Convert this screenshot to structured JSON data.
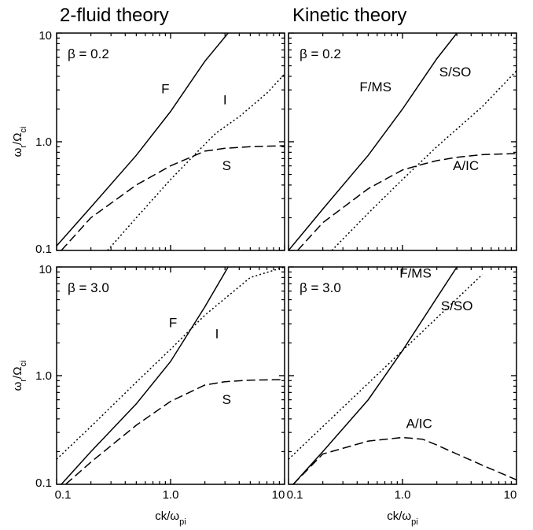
{
  "figure": {
    "column_titles": [
      "2-fluid theory",
      "Kinetic theory"
    ],
    "ylabel": "ωr/Ωci",
    "xlabel": "ck/ωpi"
  },
  "chart_data": [
    {
      "type": "line",
      "title": "2-fluid theory",
      "annotation": "β = 0.2",
      "xlabel": "ck/ωpi",
      "ylabel": "ωr/Ωci",
      "xscale": "log",
      "yscale": "log",
      "xlim": [
        0.1,
        10
      ],
      "ylim": [
        0.1,
        10
      ],
      "xticks": [
        "0.1",
        "1.0",
        "10"
      ],
      "yticks": [
        "0.1",
        "1.0",
        "10"
      ],
      "show_xticks": false,
      "series": [
        {
          "name": "F",
          "style": "solid",
          "x": [
            0.1,
            0.2,
            0.5,
            1.0,
            2.0,
            3.2
          ],
          "y": [
            0.11,
            0.25,
            0.75,
            1.9,
            5.5,
            10.0
          ],
          "label_at": [
            0.9,
            2.8
          ]
        },
        {
          "name": "I",
          "style": "dotted",
          "x": [
            0.28,
            0.5,
            1.0,
            2.0,
            2.5,
            4.0,
            7.0,
            10.0
          ],
          "y": [
            0.1,
            0.2,
            0.45,
            0.95,
            1.2,
            1.7,
            2.8,
            4.2
          ],
          "label_at": [
            3.0,
            2.2
          ]
        },
        {
          "name": "S",
          "style": "dashed",
          "x": [
            0.11,
            0.2,
            0.5,
            1.0,
            2.0,
            3.0,
            5.0,
            10.0
          ],
          "y": [
            0.1,
            0.2,
            0.4,
            0.6,
            0.82,
            0.87,
            0.9,
            0.92
          ],
          "label_at": [
            3.1,
            0.55
          ]
        }
      ]
    },
    {
      "type": "line",
      "title": "Kinetic theory",
      "annotation": "β = 0.2",
      "xlabel": "ck/ωpi",
      "ylabel": "ωr/Ωci",
      "xscale": "log",
      "yscale": "log",
      "xlim": [
        0.1,
        10
      ],
      "ylim": [
        0.1,
        10
      ],
      "xticks": [
        "0.1",
        "1.0",
        "10"
      ],
      "yticks": [
        "0.1",
        "1.0",
        "10"
      ],
      "show_xticks": false,
      "series": [
        {
          "name": "F/MS",
          "style": "solid",
          "x": [
            0.1,
            0.2,
            0.5,
            1.0,
            2.0,
            3.0
          ],
          "y": [
            0.1,
            0.24,
            0.75,
            2.0,
            5.8,
            10.0
          ],
          "label_at": [
            0.58,
            2.9
          ]
        },
        {
          "name": "S/SO",
          "style": "dotted",
          "x": [
            0.24,
            0.5,
            1.0,
            2.0,
            5.0,
            10.0
          ],
          "y": [
            0.1,
            0.22,
            0.45,
            0.9,
            2.1,
            4.5
          ],
          "label_at": [
            2.9,
            4.0
          ]
        },
        {
          "name": "A/IC",
          "style": "dashed",
          "x": [
            0.12,
            0.2,
            0.5,
            1.0,
            1.5,
            2.0,
            3.0,
            5.0,
            10.0
          ],
          "y": [
            0.1,
            0.18,
            0.37,
            0.55,
            0.62,
            0.67,
            0.72,
            0.76,
            0.78
          ],
          "label_at": [
            3.6,
            0.55
          ]
        }
      ]
    },
    {
      "type": "line",
      "annotation": "β = 3.0",
      "xlabel": "ck/ωpi",
      "ylabel": "ωr/Ωci",
      "xscale": "log",
      "yscale": "log",
      "xlim": [
        0.1,
        10
      ],
      "ylim": [
        0.1,
        10
      ],
      "xticks": [
        "0.1",
        "1.0",
        "10"
      ],
      "yticks": [
        "0.1",
        "1.0",
        "10"
      ],
      "show_xticks": true,
      "series": [
        {
          "name": "F",
          "style": "solid",
          "x": [
            0.11,
            0.2,
            0.5,
            1.0,
            2.0,
            3.2
          ],
          "y": [
            0.1,
            0.2,
            0.55,
            1.35,
            4.3,
            10.0
          ],
          "label_at": [
            1.05,
            2.8
          ]
        },
        {
          "name": "I",
          "style": "dotted",
          "x": [
            0.1,
            0.2,
            0.5,
            1.0,
            2.0,
            5.0,
            10.0
          ],
          "y": [
            0.17,
            0.34,
            0.87,
            1.75,
            3.6,
            8.0,
            10.0
          ],
          "label_at": [
            2.55,
            2.2
          ]
        },
        {
          "name": "S",
          "style": "dashed",
          "x": [
            0.12,
            0.2,
            0.5,
            1.0,
            2.0,
            3.0,
            5.0,
            10.0
          ],
          "y": [
            0.1,
            0.16,
            0.35,
            0.58,
            0.82,
            0.88,
            0.91,
            0.92
          ],
          "label_at": [
            3.1,
            0.55
          ]
        }
      ]
    },
    {
      "type": "line",
      "annotation": "β = 3.0",
      "xlabel": "ck/ωpi",
      "ylabel": "ωr/Ωci",
      "xscale": "log",
      "yscale": "log",
      "xlim": [
        0.1,
        10
      ],
      "ylim": [
        0.1,
        10
      ],
      "xticks": [
        "0.1",
        "1.0",
        "10"
      ],
      "yticks": [
        "0.1",
        "1.0",
        "10"
      ],
      "show_xticks": true,
      "series": [
        {
          "name": "F/MS",
          "style": "solid",
          "x": [
            0.11,
            0.2,
            0.5,
            1.0,
            2.0,
            3.0
          ],
          "y": [
            0.1,
            0.2,
            0.6,
            1.7,
            5.2,
            10.0
          ],
          "label_at": [
            1.3,
            8.0
          ]
        },
        {
          "name": "S/SO",
          "style": "dotted",
          "x": [
            0.1,
            0.2,
            0.5,
            1.0,
            2.0,
            5.0
          ],
          "y": [
            0.17,
            0.34,
            0.85,
            1.7,
            3.4,
            8.5
          ],
          "label_at": [
            3.0,
            4.0
          ]
        },
        {
          "name": "A/IC",
          "style": "dashed",
          "x": [
            0.11,
            0.2,
            0.5,
            1.0,
            1.5,
            2.0,
            3.0,
            5.0,
            10.0
          ],
          "y": [
            0.1,
            0.19,
            0.25,
            0.27,
            0.26,
            0.23,
            0.19,
            0.15,
            0.11
          ],
          "label_at": [
            1.4,
            0.33
          ]
        }
      ]
    }
  ]
}
